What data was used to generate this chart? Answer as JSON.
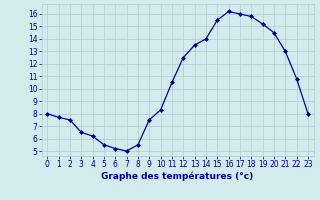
{
  "hours": [
    0,
    1,
    2,
    3,
    4,
    5,
    6,
    7,
    8,
    9,
    10,
    11,
    12,
    13,
    14,
    15,
    16,
    17,
    18,
    19,
    20,
    21,
    22,
    23
  ],
  "temps": [
    8.0,
    7.7,
    7.5,
    6.5,
    6.2,
    5.5,
    5.2,
    5.0,
    5.5,
    7.5,
    8.3,
    10.5,
    12.5,
    13.5,
    14.0,
    15.5,
    16.2,
    16.0,
    15.8,
    15.2,
    14.5,
    13.0,
    10.8,
    8.0
  ],
  "line_color": "#000099",
  "marker": "D",
  "marker_size": 2.0,
  "bg_color": "#d0ecec",
  "grid_color": "#b0cccc",
  "axis_label_color": "#000099",
  "tick_color": "#000099",
  "xlabel": "Graphe des températures (°c)",
  "ylim_min": 4.6,
  "ylim_max": 16.8,
  "xlim_min": -0.5,
  "xlim_max": 23.5,
  "yticks": [
    5,
    6,
    7,
    8,
    9,
    10,
    11,
    12,
    13,
    14,
    15,
    16
  ],
  "xticks": [
    0,
    1,
    2,
    3,
    4,
    5,
    6,
    7,
    8,
    9,
    10,
    11,
    12,
    13,
    14,
    15,
    16,
    17,
    18,
    19,
    20,
    21,
    22,
    23
  ],
  "xlabel_fontsize": 6.5,
  "tick_fontsize": 5.5,
  "linewidth": 0.9
}
